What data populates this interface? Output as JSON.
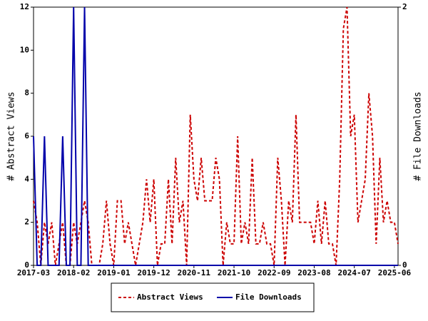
{
  "chart_data": {
    "type": "line",
    "categories": [
      "2017-03",
      null,
      null,
      null,
      null,
      null,
      null,
      null,
      null,
      null,
      null,
      "2018-02",
      null,
      null,
      null,
      null,
      null,
      null,
      null,
      null,
      null,
      null,
      "2019-01",
      null,
      null,
      null,
      null,
      null,
      null,
      null,
      null,
      null,
      null,
      "2019-12",
      null,
      null,
      null,
      null,
      null,
      null,
      null,
      null,
      null,
      null,
      "2020-11",
      null,
      null,
      null,
      null,
      null,
      null,
      null,
      null,
      null,
      null,
      "2021-10",
      null,
      null,
      null,
      null,
      null,
      null,
      null,
      null,
      null,
      null,
      "2022-09",
      null,
      null,
      null,
      null,
      null,
      null,
      null,
      null,
      null,
      null,
      "2023-08",
      null,
      null,
      null,
      null,
      null,
      null,
      null,
      null,
      null,
      null,
      "2024-07",
      null,
      null,
      null,
      null,
      null,
      null,
      null,
      null,
      null,
      null,
      "2025-06",
      null
    ],
    "ylabel": "# Abstract Views",
    "y2label": "# File Downloads",
    "ylim": [
      0,
      12
    ],
    "yticks": [
      0,
      2,
      4,
      6,
      8,
      10,
      12
    ],
    "y2lim": [
      0,
      2
    ],
    "y2ticks": [
      0,
      2
    ],
    "legend": "bottom",
    "series": [
      {
        "name": "Abstract Views",
        "color": "#cc0000",
        "dashed": true,
        "values": [
          3,
          2,
          0,
          2,
          1,
          2,
          0,
          1,
          2,
          0,
          0,
          2,
          1,
          2,
          3,
          2,
          0,
          0,
          0,
          1,
          3,
          1,
          0,
          3,
          3,
          1,
          2,
          1,
          0,
          1,
          2,
          4,
          2,
          4,
          0,
          1,
          1,
          4,
          1,
          5,
          2,
          3,
          0,
          7,
          4,
          3,
          5,
          3,
          3,
          3,
          5,
          4,
          0,
          2,
          1,
          1,
          6,
          1,
          2,
          1,
          5,
          1,
          1,
          2,
          1,
          1,
          0,
          5,
          3,
          0,
          3,
          2,
          7,
          2,
          2,
          2,
          2,
          1,
          3,
          1,
          3,
          1,
          1,
          0,
          4,
          11,
          12,
          6,
          7,
          2,
          3,
          4,
          8,
          6,
          1,
          5,
          2,
          3,
          2,
          2,
          1
        ]
      },
      {
        "name": "File Downloads",
        "color": "#0000aa",
        "axis": "y2",
        "values": [
          1,
          0,
          0,
          1,
          0,
          0,
          0,
          0,
          1,
          0,
          0,
          2,
          0,
          0,
          2,
          0,
          0,
          0,
          0,
          0,
          0,
          0,
          0,
          0,
          0,
          0,
          0,
          0,
          0,
          0,
          0,
          0,
          0,
          0,
          0,
          0,
          0,
          0,
          0,
          0,
          0,
          0,
          0,
          0,
          0,
          0,
          0,
          0,
          0,
          0,
          0,
          0,
          0,
          0,
          0,
          0,
          0,
          0,
          0,
          0,
          0,
          0,
          0,
          0,
          0,
          0,
          0,
          0,
          0,
          0,
          0,
          0,
          0,
          0,
          0,
          0,
          0,
          0,
          0,
          0,
          0,
          0,
          0,
          0,
          0,
          0,
          0,
          0,
          0,
          0,
          0,
          0,
          0,
          0,
          0,
          0,
          0,
          0,
          0,
          0,
          0
        ]
      }
    ]
  }
}
